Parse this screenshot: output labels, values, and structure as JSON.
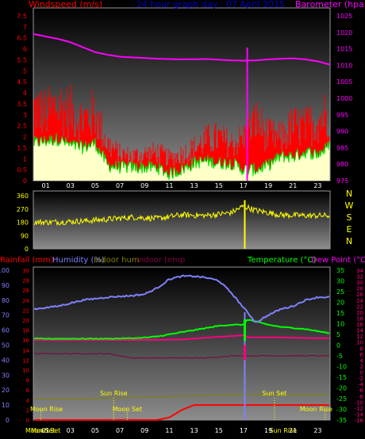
{
  "header": {
    "windspeed_title": "Windspeed (m/s)",
    "graph_title": "24 hour graph day : 07 April 2015",
    "barometer_title": "Barometer (hpa)"
  },
  "colors": {
    "windspeed": "#ff0000",
    "gust": "#ffffc8",
    "wind_avg": "#00dd00",
    "barometer": "#ff00ff",
    "direction": "#ffff00",
    "humidity": "#8080ff",
    "temperature": "#00ff00",
    "dewpoint": "#ff0080",
    "indoor_hum": "#808000",
    "indoor_temp": "#800040",
    "rainfall": "#ff0000",
    "now_marker": "#ff00ff",
    "title": "#0000cc",
    "axis_text": "#ffffff"
  },
  "chart_data": [
    {
      "type": "line",
      "name": "wind-barometer",
      "x_ticks": [
        "01",
        "03",
        "05",
        "07",
        "09",
        "11",
        "13",
        "15",
        "17",
        "19",
        "21",
        "23"
      ],
      "x_range": [
        0,
        24
      ],
      "left_axis": {
        "label": "Windspeed (m/s)",
        "ticks": [
          "0",
          "0.5",
          "1",
          "1.5",
          "2",
          "2.5",
          "3",
          "3.5",
          "4",
          "4.5",
          "5",
          "5.5",
          "6",
          "6.5",
          "7",
          "7.5"
        ],
        "ylim": [
          0,
          7.5
        ]
      },
      "right_axis": {
        "label": "Barometer (hpa)",
        "ticks": [
          "975",
          "980",
          "985",
          "990",
          "995",
          "1000",
          "1005",
          "1010",
          "1015",
          "1020",
          "1025"
        ],
        "ylim": [
          975,
          1025
        ]
      },
      "grid": false,
      "series": [
        {
          "key": "barometer",
          "x": [
            0,
            2,
            3,
            4,
            5,
            6,
            7,
            8,
            10,
            12,
            14,
            16,
            17,
            18,
            19,
            20,
            21,
            22,
            23,
            24
          ],
          "values": [
            1019.5,
            1018.0,
            1017.0,
            1015.5,
            1014.0,
            1013.2,
            1012.6,
            1012.4,
            1012.0,
            1011.8,
            1011.9,
            1011.5,
            1011.4,
            1011.5,
            1011.8,
            1012.0,
            1012.1,
            1011.8,
            1011.2,
            1010.2
          ]
        },
        {
          "key": "windspeed",
          "x": [
            0,
            1,
            2,
            3,
            4,
            5,
            6,
            7,
            8,
            9,
            10,
            11,
            12,
            13,
            14,
            15,
            16,
            17,
            18,
            19,
            20,
            21,
            22,
            23,
            24
          ],
          "values": [
            3.6,
            3.3,
            3.7,
            3.4,
            3.0,
            3.3,
            1.8,
            1.3,
            1.2,
            1.3,
            1.4,
            1.1,
            1.3,
            1.6,
            2.0,
            2.1,
            1.8,
            2.1,
            3.0,
            2.2,
            2.1,
            2.7,
            2.6,
            3.0,
            3.4
          ]
        },
        {
          "key": "wind_avg",
          "x": [
            0,
            1,
            2,
            3,
            4,
            5,
            6,
            7,
            8,
            9,
            10,
            11,
            12,
            13,
            14,
            15,
            16,
            17,
            18,
            19,
            20,
            21,
            22,
            23,
            24
          ],
          "values": [
            1.7,
            1.8,
            1.9,
            1.6,
            1.5,
            1.7,
            0.7,
            0.6,
            0.6,
            0.6,
            0.6,
            0.3,
            0.5,
            0.8,
            0.9,
            0.8,
            0.8,
            0.5,
            0.5,
            0.7,
            1.1,
            1.1,
            1.3,
            1.2,
            1.6
          ]
        }
      ]
    },
    {
      "type": "line",
      "name": "wind-direction",
      "x_range": [
        0,
        24
      ],
      "ylim": [
        0,
        360
      ],
      "y_ticks": [
        "0",
        "90",
        "180",
        "270",
        "360"
      ],
      "compass_labels": [
        "N",
        "W",
        "S",
        "E",
        "N"
      ],
      "series": [
        {
          "key": "direction",
          "x": [
            0,
            2,
            4,
            6,
            8,
            10,
            12,
            14,
            16,
            17,
            18,
            20,
            22,
            24
          ],
          "values": [
            180,
            182,
            188,
            200,
            215,
            205,
            230,
            225,
            245,
            290,
            260,
            230,
            225,
            225
          ]
        }
      ]
    },
    {
      "type": "line",
      "name": "temperature-humidity",
      "x_ticks": [
        "Moon Set",
        "01",
        "03",
        "05",
        "07",
        "09",
        "11",
        "13",
        "15",
        "17",
        "19",
        "21",
        "23"
      ],
      "x_range": [
        0,
        24
      ],
      "legend": [
        "Rainfall (mm)",
        "Humidity (%)",
        "Indoor hum",
        "Indoor temp",
        "Temperature (°C)",
        "Dew Point (°C)"
      ],
      "humidity_axis": {
        "ticks": [
          "0",
          "10",
          "20",
          "30",
          "40",
          "50",
          "60",
          "70",
          "80",
          "90",
          "100"
        ],
        "ylim": [
          0,
          100
        ]
      },
      "rainfall_axis": {
        "ticks": [
          "0",
          "2",
          "4",
          "6",
          "8",
          "10",
          "12",
          "14",
          "16",
          "18",
          "20",
          "22",
          "24",
          "26",
          "28",
          "30"
        ],
        "ylim": [
          0,
          30
        ]
      },
      "temperature_axis": {
        "ticks": [
          "-35",
          "-30",
          "-25",
          "-20",
          "-15",
          "-10",
          "-5",
          "0",
          "5",
          "10",
          "15",
          "20",
          "25",
          "30",
          "35"
        ],
        "ylim": [
          -35,
          35
        ]
      },
      "dewpoint_axis": {
        "ticks": [
          "-16",
          "-14",
          "-12",
          "-10",
          "-8",
          "-6",
          "-4",
          "-2",
          "0",
          "2",
          "4",
          "6",
          "8",
          "10",
          "12",
          "14",
          "16",
          "18",
          "20",
          "22",
          "24",
          "26",
          "28",
          "30",
          "32",
          "34"
        ],
        "ylim": [
          -16,
          34
        ]
      },
      "annotations": [
        {
          "label": "Moon Rise",
          "x": 0.6,
          "row": "lower"
        },
        {
          "label": "Sun Rise",
          "x": 6.5,
          "row": "upper"
        },
        {
          "label": "Moon Set",
          "x": 7.6,
          "row": "lower"
        },
        {
          "label": "Sun Set",
          "x": 19.5,
          "row": "upper"
        },
        {
          "label": "Moon Rise",
          "x": 24.6,
          "row": "lower"
        },
        {
          "label": "Moon Set",
          "x": 1.0,
          "row": "axis"
        },
        {
          "label": "Sun Rise",
          "x": 20.2,
          "row": "axis"
        }
      ],
      "series": [
        {
          "key": "humidity",
          "x": [
            0,
            2,
            4,
            6,
            8,
            9,
            10,
            11,
            12,
            13,
            14,
            15,
            16,
            16.5,
            17,
            17.2,
            18,
            19,
            20,
            21,
            22,
            23,
            24
          ],
          "values": [
            74,
            76,
            80,
            82,
            83,
            84,
            88,
            94,
            96,
            96,
            95,
            93,
            85,
            80,
            75,
            73,
            65,
            70,
            74,
            76,
            80,
            82,
            82
          ]
        },
        {
          "key": "temperature",
          "x": [
            0,
            2,
            4,
            6,
            8,
            9,
            10,
            11,
            12,
            13,
            14,
            15,
            16,
            17,
            17.3,
            18,
            19,
            20,
            21,
            22,
            23,
            24
          ],
          "values": [
            3,
            3,
            3,
            3,
            3.2,
            3.5,
            4,
            5,
            6,
            7,
            8,
            9,
            9.5,
            9.5,
            12,
            11,
            9.5,
            8.5,
            8,
            7.5,
            6.5,
            5.5
          ]
        },
        {
          "key": "dewpoint",
          "x": [
            0,
            2,
            4,
            6,
            8,
            10,
            12,
            14,
            16,
            17,
            17.3,
            18,
            20,
            22,
            24
          ],
          "values": [
            2.4,
            2.4,
            2.4,
            2.4,
            2.4,
            2.5,
            2.6,
            3.5,
            4.2,
            4.6,
            3.6,
            3.6,
            3.6,
            3.3,
            3.2
          ]
        },
        {
          "key": "indoor_hum",
          "x": [
            0,
            4,
            8,
            12,
            16,
            20,
            24
          ],
          "values": [
            14,
            14,
            15,
            16,
            17,
            17,
            17
          ]
        },
        {
          "key": "indoor_temp",
          "x": [
            0,
            4,
            6,
            8,
            10,
            12,
            14,
            16,
            18,
            20,
            22,
            24
          ],
          "values": [
            -4,
            -4,
            -4,
            -6,
            -6,
            -6,
            -6,
            -5,
            -5,
            -5,
            -5,
            -5
          ]
        },
        {
          "key": "rainfall",
          "x": [
            0,
            8,
            10,
            11,
            12,
            13,
            14,
            15,
            24
          ],
          "values": [
            0,
            0,
            0,
            0.5,
            2,
            3,
            3,
            3,
            3
          ]
        }
      ]
    }
  ]
}
